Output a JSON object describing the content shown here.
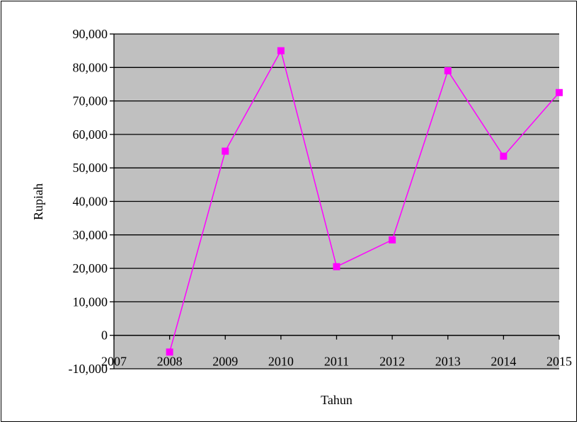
{
  "chart_data": {
    "type": "line",
    "title": "",
    "xlabel": "Tahun",
    "ylabel": "Rupiah",
    "xlim": [
      2007,
      2015
    ],
    "ylim": [
      -10000,
      90000
    ],
    "x_ticks": [
      "2007",
      "2008",
      "2009",
      "2010",
      "2011",
      "2012",
      "2013",
      "2014",
      "2015"
    ],
    "y_ticks": [
      "-10,000",
      "0",
      "10,000",
      "20,000",
      "30,000",
      "40,000",
      "50,000",
      "60,000",
      "70,000",
      "80,000",
      "90,000"
    ],
    "grid": true,
    "legend": "none",
    "series": [
      {
        "x": [
          2008,
          2009,
          2010,
          2011,
          2012,
          2013,
          2014,
          2015
        ],
        "values": [
          -5000,
          55000,
          85000,
          20500,
          28500,
          79000,
          53500,
          72500
        ]
      }
    ],
    "colors": {
      "plot_background": "#c0c0c0",
      "line": "#ff00ff",
      "marker": "#ff00ff",
      "gridline": "#000000"
    }
  }
}
